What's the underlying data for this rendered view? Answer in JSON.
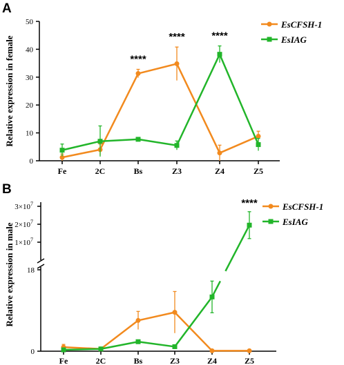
{
  "colors": {
    "EsCFSH-1": "#f28a1e",
    "EsIAG": "#22b52a",
    "axis": "#000000"
  },
  "chart_data": [
    {
      "panel_label": "A",
      "type": "line",
      "categories": [
        "Fe",
        "2C",
        "Bs",
        "Z3",
        "Z4",
        "Z5"
      ],
      "ylabel": "Relative expression in female",
      "ylim": [
        0,
        50
      ],
      "yticks": [
        "0",
        "10",
        "20",
        "30",
        "40",
        "50"
      ],
      "legend_position": "top-right",
      "series": [
        {
          "name": "EsCFSH-1",
          "marker": "circle",
          "values": [
            1.2,
            4.0,
            31.3,
            34.8,
            2.8,
            8.8
          ],
          "errors": [
            1.2,
            2.0,
            1.5,
            6.0,
            2.8,
            1.8
          ]
        },
        {
          "name": "EsIAG",
          "marker": "square",
          "values": [
            3.8,
            7.0,
            7.7,
            5.5,
            38.2,
            5.8
          ],
          "errors": [
            2.2,
            5.5,
            0.6,
            1.6,
            3.0,
            2.2
          ]
        }
      ],
      "annotations": [
        {
          "category": "Bs",
          "text": "****"
        },
        {
          "category": "Z3",
          "text": "****"
        },
        {
          "category": "Z4",
          "text": "****"
        }
      ]
    },
    {
      "panel_label": "B",
      "type": "line",
      "categories": [
        "Fe",
        "2C",
        "Bs",
        "Z3",
        "Z4",
        "Z5"
      ],
      "ylabel": "Relative expression in male",
      "yaxis_break": true,
      "lower_ylim": [
        0,
        18
      ],
      "lower_yticks": [
        "0",
        "18"
      ],
      "upper_yticks": [
        {
          "mantissa": "1×10",
          "exp": "7",
          "value": 10000000
        },
        {
          "mantissa": "2×10",
          "exp": "7",
          "value": 20000000
        },
        {
          "mantissa": "3×10",
          "exp": "7",
          "value": 30000000
        }
      ],
      "legend_position": "top-right",
      "series": [
        {
          "name": "EsCFSH-1",
          "marker": "circle",
          "values": [
            0.9,
            0.5,
            6.8,
            8.6,
            0.1,
            0.1
          ],
          "errors": [
            0.6,
            0.4,
            2.0,
            4.6,
            0.1,
            0.1
          ]
        },
        {
          "name": "EsIAG",
          "marker": "square",
          "values": [
            0.3,
            0.5,
            2.1,
            1.0,
            12.0,
            19500000
          ],
          "errors": [
            0.3,
            0.3,
            0.3,
            0.2,
            3.5,
            7500000
          ]
        }
      ],
      "annotations": [
        {
          "category": "Z5",
          "text": "****"
        }
      ]
    }
  ]
}
